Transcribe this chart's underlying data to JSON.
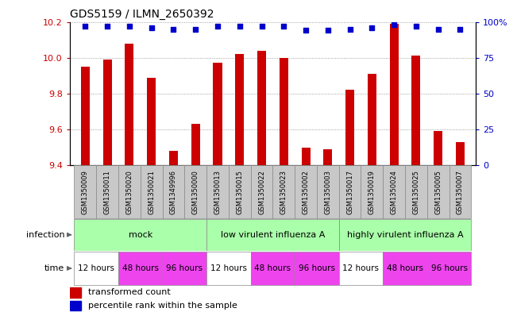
{
  "title": "GDS5159 / ILMN_2650392",
  "samples": [
    "GSM1350009",
    "GSM1350011",
    "GSM1350020",
    "GSM1350021",
    "GSM1349996",
    "GSM1350000",
    "GSM1350013",
    "GSM1350015",
    "GSM1350022",
    "GSM1350023",
    "GSM1350002",
    "GSM1350003",
    "GSM1350017",
    "GSM1350019",
    "GSM1350024",
    "GSM1350025",
    "GSM1350005",
    "GSM1350007"
  ],
  "bar_values": [
    9.95,
    9.99,
    10.08,
    9.89,
    9.48,
    9.63,
    9.97,
    10.02,
    10.04,
    10.0,
    9.5,
    9.49,
    9.82,
    9.91,
    10.19,
    10.01,
    9.59,
    9.53
  ],
  "dot_values": [
    97,
    97,
    97,
    96,
    95,
    95,
    97,
    97,
    97,
    97,
    94,
    94,
    95,
    96,
    98,
    97,
    95,
    95
  ],
  "ylim_left": [
    9.4,
    10.2
  ],
  "ylim_right": [
    0,
    100
  ],
  "yticks_left": [
    9.4,
    9.6,
    9.8,
    10.0,
    10.2
  ],
  "yticks_right": [
    0,
    25,
    50,
    75,
    100
  ],
  "bar_color": "#cc0000",
  "dot_color": "#0000cc",
  "sample_box_color": "#c8c8c8",
  "infection_color": "#aaffaa",
  "time_12_color": "#ffffff",
  "time_48_color": "#ee44ee",
  "time_96_color": "#ee44ee",
  "legend_bar_label": "transformed count",
  "legend_dot_label": "percentile rank within the sample",
  "infection_label": "infection",
  "time_label": "time",
  "background_color": "#ffffff",
  "grid_color": "#888888"
}
